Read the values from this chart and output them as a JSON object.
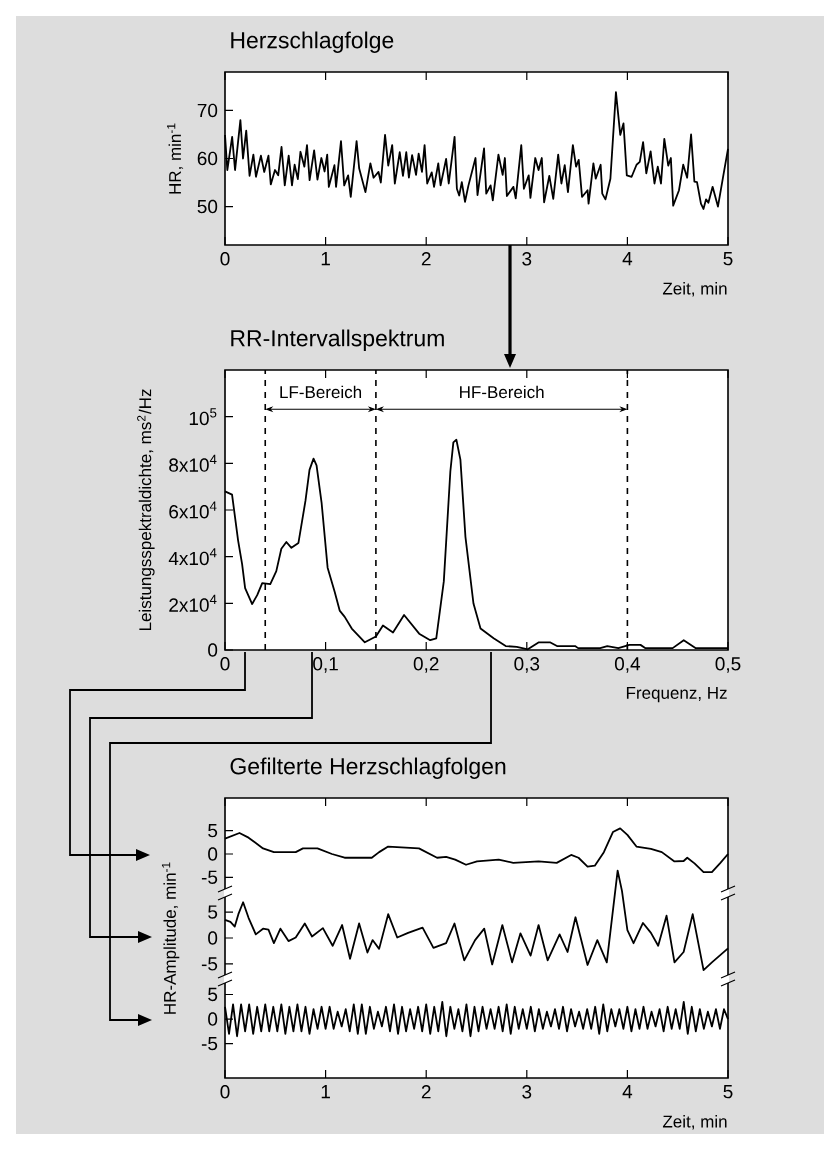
{
  "chart_data": [
    {
      "type": "line",
      "title": "Herzschlagfolge",
      "xlabel": "Zeit, min",
      "ylabel": "HR, min$^{-1}$",
      "color": "#000000",
      "xlim": [
        0,
        5
      ],
      "ylim": [
        42,
        78
      ],
      "xticks": [
        0,
        1,
        2,
        3,
        4,
        5
      ],
      "yticks": [
        50,
        60,
        70
      ],
      "x": [
        0,
        0.023,
        0.071,
        0.1,
        0.153,
        0.179,
        0.211,
        0.244,
        0.282,
        0.308,
        0.357,
        0.39,
        0.432,
        0.455,
        0.497,
        0.529,
        0.562,
        0.594,
        0.633,
        0.666,
        0.692,
        0.724,
        0.75,
        0.789,
        0.815,
        0.841,
        0.886,
        0.919,
        0.958,
        0.99,
        1.016,
        1.032,
        1.088,
        1.104,
        1.153,
        1.185,
        1.224,
        1.25,
        1.308,
        1.334,
        1.396,
        1.445,
        1.477,
        1.526,
        1.549,
        1.591,
        1.623,
        1.662,
        1.688,
        1.737,
        1.769,
        1.802,
        1.828,
        1.86,
        1.899,
        1.925,
        1.958,
        1.984,
        2.01,
        2.055,
        2.078,
        2.12,
        2.143,
        2.198,
        2.224,
        2.282,
        2.305,
        2.328,
        2.354,
        2.386,
        2.419,
        2.49,
        2.51,
        2.575,
        2.597,
        2.64,
        2.662,
        2.718,
        2.76,
        2.782,
        2.802,
        2.867,
        2.89,
        2.945,
        2.971,
        3.019,
        3.036,
        3.084,
        3.117,
        3.149,
        3.172,
        3.224,
        3.263,
        3.312,
        3.344,
        3.377,
        3.409,
        3.458,
        3.49,
        3.516,
        3.549,
        3.604,
        3.614,
        3.662,
        3.685,
        3.734,
        3.75,
        3.782,
        3.831,
        3.886,
        3.929,
        3.961,
        3.994,
        4.042,
        4.091,
        4.123,
        4.156,
        4.188,
        4.231,
        4.269,
        4.302,
        4.334,
        4.367,
        4.406,
        4.432,
        4.455,
        4.513,
        4.555,
        4.594,
        4.633,
        4.666,
        4.692,
        4.731,
        4.756,
        4.782,
        4.805,
        4.847,
        4.9,
        4.95,
        5
      ],
      "values": [
        64.9,
        57.6,
        64.5,
        57.6,
        68,
        60,
        65.8,
        56.4,
        60.8,
        56.2,
        60.6,
        57.2,
        60.6,
        54.6,
        57.6,
        56.5,
        62.4,
        54.4,
        60.6,
        54.4,
        58.7,
        55.7,
        61.4,
        58.3,
        62.8,
        55.5,
        61.7,
        55.6,
        60.1,
        57.3,
        60.8,
        54.1,
        58.6,
        54.1,
        63.6,
        54.4,
        56.5,
        52,
        63.6,
        57.9,
        53,
        59,
        56,
        57.2,
        55,
        64.9,
        58.5,
        62.8,
        54.8,
        61.3,
        56.4,
        61.3,
        56,
        60.7,
        56.6,
        61,
        57.2,
        62.8,
        54.8,
        57.1,
        54.1,
        59,
        54.4,
        59.9,
        54.8,
        64.5,
        53.7,
        52.3,
        55.1,
        51,
        54.3,
        60.1,
        52.4,
        62.1,
        52.7,
        54.4,
        51.3,
        60.8,
        56.6,
        60.1,
        52.2,
        54.1,
        51.7,
        62.8,
        53.7,
        56.5,
        51.8,
        60.1,
        57.6,
        60.1,
        50.9,
        56.4,
        51.6,
        60.8,
        54.8,
        58.6,
        53,
        62.8,
        58.3,
        59.7,
        52,
        53.4,
        50.6,
        59,
        55.8,
        58.7,
        52.7,
        51.5,
        55.8,
        73.8,
        64.9,
        67.3,
        56.5,
        56.2,
        58.7,
        59.3,
        63.4,
        56.9,
        61.5,
        54.8,
        58.3,
        54.8,
        64.1,
        58.5,
        60.1,
        50.2,
        53.4,
        58.7,
        56,
        65,
        55.2,
        55.1,
        50.6,
        49.5,
        51.5,
        50.8,
        54.1,
        50,
        56,
        62
      ]
    },
    {
      "type": "line",
      "title": "RR-Intervallspektrum",
      "xlabel": "Frequenz, Hz",
      "ylabel": "Leistungsspektraldichte, ms$^{2}$/Hz",
      "color": "#000000",
      "xlim": [
        0,
        0.5
      ],
      "ylim": [
        0,
        120000
      ],
      "xticks": [
        0,
        {
          "value": 0.1,
          "label": "0,1"
        },
        {
          "value": 0.2,
          "label": "0,2"
        },
        {
          "value": 0.3,
          "label": "0,3"
        },
        {
          "value": 0.4,
          "label": "0,4"
        },
        {
          "value": 0.5,
          "label": "0,5"
        }
      ],
      "yticks": [
        0,
        {
          "value": 20000,
          "label": "2x10$^{4}$"
        },
        {
          "value": 40000,
          "label": "4x10$^{4}$"
        },
        {
          "value": 60000,
          "label": "6x10$^{4}$"
        },
        {
          "value": 80000,
          "label": "8x10$^{4}$"
        },
        {
          "value": 100000,
          "label": "10$^{5}$"
        }
      ],
      "ref_lines": [
        {
          "axis": "x",
          "value": 0.04,
          "line_style": "dashed"
        },
        {
          "axis": "x",
          "value": 0.15,
          "line_style": "dashed"
        },
        {
          "axis": "x",
          "value": 0.4,
          "line_style": "dashed"
        }
      ],
      "annotations": [
        "LF-Bereich",
        "HF-Bereich"
      ],
      "x": [
        0,
        0.007,
        0.013,
        0.017,
        0.02,
        0.027,
        0.032,
        0.037,
        0.045,
        0.051,
        0.056,
        0.061,
        0.066,
        0.073,
        0.08,
        0.084,
        0.088,
        0.091,
        0.096,
        0.102,
        0.109,
        0.114,
        0.119,
        0.126,
        0.139,
        0.15,
        0.157,
        0.167,
        0.178,
        0.193,
        0.204,
        0.21,
        0.2175,
        0.224,
        0.227,
        0.23,
        0.234,
        0.239,
        0.247,
        0.254,
        0.267,
        0.279,
        0.29,
        0.301,
        0.312,
        0.323,
        0.33,
        0.348,
        0.351,
        0.373,
        0.38,
        0.391,
        0.402,
        0.413,
        0.418,
        0.445,
        0.456,
        0.468,
        0.484,
        0.5
      ],
      "values": [
        68000,
        66600,
        47000,
        36800,
        26500,
        19700,
        23500,
        28700,
        28200,
        33800,
        43400,
        46300,
        43800,
        45900,
        64000,
        77200,
        82000,
        79100,
        63200,
        35300,
        25000,
        16900,
        14200,
        9200,
        3300,
        5800,
        10500,
        7500,
        15000,
        7000,
        4200,
        5000,
        29400,
        76500,
        89000,
        90100,
        81600,
        48500,
        19900,
        9200,
        5000,
        1700,
        1300,
        300,
        3300,
        3300,
        1700,
        1700,
        800,
        800,
        1700,
        800,
        2200,
        2200,
        800,
        800,
        4200,
        800,
        800,
        800
      ]
    },
    {
      "type": "line",
      "title": "Gefilterte Herzschlagfolgen",
      "color": "#000000",
      "xlim": [
        0,
        5
      ],
      "ylim": [
        -48,
        12
      ],
      "yticks": [
        -5,
        0,
        5
      ],
      "tick_labels": "y",
      "x": [
        0,
        0.144,
        0.234,
        0.378,
        0.486,
        0.703,
        0.775,
        0.919,
        1.063,
        1.189,
        1.459,
        1.532,
        1.622,
        1.928,
        2.108,
        2.198,
        2.288,
        2.396,
        2.505,
        2.721,
        2.865,
        3.117,
        3.297,
        3.441,
        3.514,
        3.604,
        3.676,
        3.766,
        3.856,
        3.928,
        4.0,
        4.09,
        4.234,
        4.342,
        4.468,
        4.559,
        4.595,
        4.667,
        4.757,
        4.84,
        4.92,
        5
      ],
      "values": [
        3.3,
        4.5,
        3.5,
        1.2,
        0.4,
        0.4,
        1.2,
        1.2,
        0,
        -0.8,
        -0.8,
        0.4,
        1.6,
        1.2,
        -0.8,
        -0.6,
        -1.2,
        -2.3,
        -1.6,
        -1.2,
        -1.9,
        -1.6,
        -1.9,
        -0.2,
        -0.8,
        -2.7,
        -2.5,
        0.4,
        4.7,
        5.5,
        4.1,
        1.6,
        1.1,
        0.4,
        -1.6,
        -1.5,
        -0.8,
        -2.0,
        -3.9,
        -3.9,
        -2,
        0
      ]
    },
    {
      "type": "line",
      "ylabel": "HR-Amplitude, min$^{-1}$",
      "color": "#000000",
      "xlim": [
        0,
        5
      ],
      "ylim": [
        -27,
        27
      ],
      "yticks": [
        -5,
        0,
        5
      ],
      "tick_labels": "y",
      "x": [
        0,
        0.054,
        0.097,
        0.133,
        0.18,
        0.234,
        0.306,
        0.378,
        0.432,
        0.486,
        0.551,
        0.631,
        0.703,
        0.793,
        0.865,
        0.973,
        1.07,
        1.164,
        1.243,
        1.333,
        1.416,
        1.467,
        1.532,
        1.622,
        1.712,
        1.82,
        1.964,
        2.072,
        2.198,
        2.281,
        2.378,
        2.486,
        2.577,
        2.656,
        2.757,
        2.854,
        2.937,
        3.038,
        3.117,
        3.207,
        3.326,
        3.405,
        3.484,
        3.604,
        3.701,
        3.795,
        3.903,
        3.946,
        4.0,
        4.061,
        4.155,
        4.234,
        4.306,
        4.389,
        4.468,
        4.559,
        4.649,
        4.757,
        4.84,
        5
      ],
      "values": [
        3.5,
        3.1,
        2.2,
        4.6,
        6.9,
        3.9,
        0.7,
        1.8,
        1.6,
        -1,
        1.8,
        -0.6,
        0.1,
        2.8,
        0.3,
        1.9,
        -1.5,
        2.5,
        -4,
        2.8,
        -2.8,
        -0.4,
        -2.1,
        4.6,
        0.1,
        1,
        2,
        -1.9,
        -1,
        2.8,
        -4.3,
        -0.4,
        1.8,
        -5.1,
        2.5,
        -4.7,
        0.9,
        -3.4,
        2.5,
        -4.3,
        0.7,
        -2.7,
        4,
        -5.2,
        -0.4,
        -4.7,
        13,
        9.1,
        1.5,
        -1,
        2.9,
        1,
        -1.5,
        4.3,
        -4.7,
        -2.7,
        4.6,
        -6.2,
        -4.7,
        -2
      ]
    },
    {
      "type": "line",
      "xlabel": "Zeit, min",
      "color": "#000000",
      "xlim": [
        0,
        5
      ],
      "ylim": [
        -12,
        45
      ],
      "xticks": [
        0,
        1,
        2,
        3,
        4,
        5
      ],
      "yticks": [
        -5,
        0,
        5
      ],
      "x": [
        0,
        0.04,
        0.08,
        0.12,
        0.16,
        0.2,
        0.24,
        0.28,
        0.32,
        0.36,
        0.4,
        0.44,
        0.48,
        0.52,
        0.56,
        0.6,
        0.64,
        0.68,
        0.72,
        0.76,
        0.8,
        0.84,
        0.88,
        0.92,
        0.96,
        1,
        1.04,
        1.08,
        1.12,
        1.16,
        1.2,
        1.24,
        1.28,
        1.32,
        1.36,
        1.4,
        1.44,
        1.48,
        1.52,
        1.56,
        1.6,
        1.64,
        1.68,
        1.72,
        1.76,
        1.8,
        1.84,
        1.88,
        1.92,
        1.96,
        2,
        2.04,
        2.08,
        2.12,
        2.16,
        2.2,
        2.24,
        2.28,
        2.32,
        2.36,
        2.4,
        2.44,
        2.48,
        2.52,
        2.56,
        2.6,
        2.64,
        2.68,
        2.72,
        2.76,
        2.8,
        2.84,
        2.88,
        2.92,
        2.96,
        3,
        3.04,
        3.08,
        3.12,
        3.16,
        3.2,
        3.24,
        3.28,
        3.32,
        3.36,
        3.4,
        3.44,
        3.48,
        3.52,
        3.56,
        3.6,
        3.64,
        3.68,
        3.72,
        3.76,
        3.8,
        3.84,
        3.88,
        3.92,
        3.96,
        4,
        4.04,
        4.08,
        4.12,
        4.16,
        4.2,
        4.24,
        4.28,
        4.32,
        4.36,
        4.4,
        4.44,
        4.48,
        4.52,
        4.56,
        4.6,
        4.64,
        4.68,
        4.72,
        4.76,
        4.8,
        4.84,
        4.88,
        4.92,
        4.96,
        5
      ],
      "values": [
        2.5,
        -3,
        3,
        -3.5,
        3,
        -2.5,
        3,
        -3,
        2.5,
        -2.5,
        3,
        -2.5,
        2.5,
        -2.5,
        3,
        -3,
        2.5,
        -2.5,
        3,
        -2.5,
        2.5,
        -3,
        2,
        -2,
        2.5,
        -2,
        2.5,
        -2,
        1.5,
        -1.5,
        2,
        -2.5,
        3,
        -3,
        3,
        -3,
        2.5,
        -2,
        1.5,
        -1.5,
        2.5,
        -2.5,
        3,
        -3,
        2.5,
        -2.5,
        2,
        -2,
        2.5,
        -2.5,
        3,
        -3,
        2.5,
        -2.5,
        3.5,
        -3.5,
        2.5,
        -2,
        2,
        -2.5,
        3,
        -3.5,
        2.5,
        -2.5,
        2.5,
        -2,
        2,
        -2,
        2.5,
        -2.5,
        3,
        -3,
        2.5,
        -2,
        2,
        -2,
        2.5,
        -2.5,
        2,
        -2,
        1.5,
        -1.5,
        2,
        -2,
        2.5,
        -2.5,
        2,
        -1.5,
        1.5,
        -2,
        2,
        -2,
        2.5,
        -3,
        3,
        -2.5,
        2,
        -1.5,
        2,
        -2,
        2.5,
        -2.5,
        2,
        -2,
        2.5,
        -2,
        1.5,
        -1.5,
        2,
        -2.5,
        2.5,
        -2,
        2,
        -2,
        3.5,
        -3,
        2.5,
        -2.5,
        2,
        -2,
        1.5,
        -1.5,
        2,
        -2,
        2,
        0
      ]
    }
  ]
}
